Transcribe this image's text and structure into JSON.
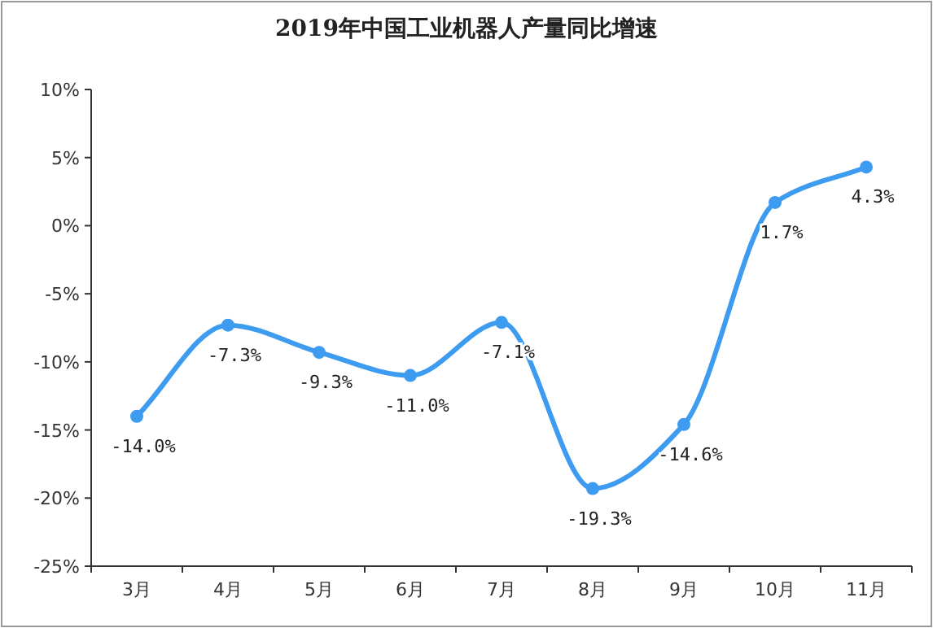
{
  "chart_data": {
    "type": "line",
    "title": "2019年中国工业机器人产量同比增速",
    "categories": [
      "3月",
      "4月",
      "5月",
      "6月",
      "7月",
      "8月",
      "9月",
      "10月",
      "11月"
    ],
    "values": [
      -14.0,
      -7.3,
      -9.3,
      -11.0,
      -7.1,
      -19.3,
      -14.6,
      1.7,
      4.3
    ],
    "value_labels": [
      "-14.0%",
      "-7.3%",
      "-9.3%",
      "-11.0%",
      "-7.1%",
      "-19.3%",
      "-14.6%",
      "1.7%",
      "4.3%"
    ],
    "color": "#3d9bf0",
    "marker": "circle",
    "line_style": "solid",
    "ylim": [
      -25,
      10
    ],
    "yticks": [
      {
        "value": -25,
        "label": "-25%"
      },
      {
        "value": -20,
        "label": "-20%"
      },
      {
        "value": -15,
        "label": "-15%"
      },
      {
        "value": -10,
        "label": "-10%"
      },
      {
        "value": -5,
        "label": "-5%"
      },
      {
        "value": 0,
        "label": "0%"
      },
      {
        "value": 5,
        "label": "5%"
      },
      {
        "value": 10,
        "label": "10%"
      }
    ]
  }
}
